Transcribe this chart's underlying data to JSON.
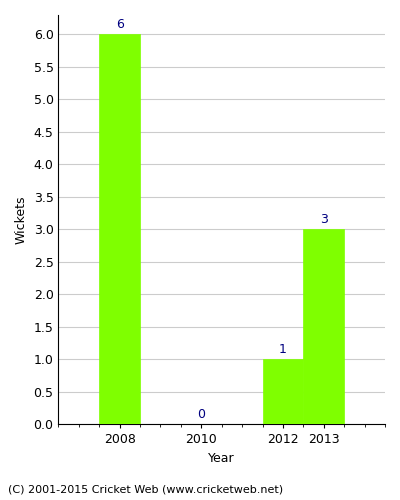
{
  "years": [
    2008,
    2010,
    2012,
    2013
  ],
  "values": [
    6,
    0,
    1,
    3
  ],
  "bar_color": "#7FFF00",
  "bar_edgecolor": "#7FFF00",
  "label_color": "#000080",
  "ylabel": "Wickets",
  "xlabel": "Year",
  "ylim": [
    0,
    6.3
  ],
  "xlim": [
    2006.5,
    2014.5
  ],
  "yticks": [
    0.0,
    0.5,
    1.0,
    1.5,
    2.0,
    2.5,
    3.0,
    3.5,
    4.0,
    4.5,
    5.0,
    5.5,
    6.0
  ],
  "xticks": [
    2008,
    2010,
    2012,
    2013
  ],
  "footer": "(C) 2001-2015 Cricket Web (www.cricketweb.net)",
  "label_fontsize": 9,
  "axis_fontsize": 9,
  "footer_fontsize": 8,
  "bar_width": 1.0,
  "bg_color": "#ffffff",
  "grid_color": "#cccccc"
}
